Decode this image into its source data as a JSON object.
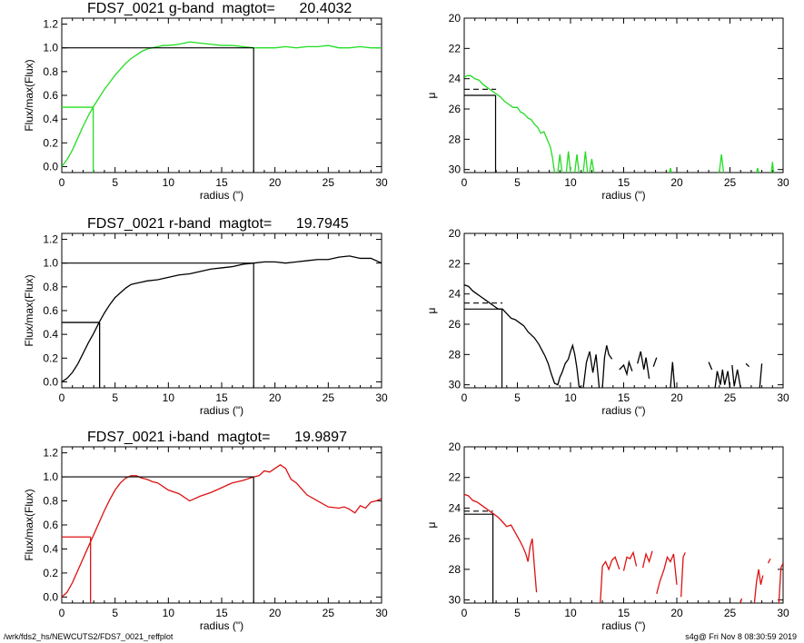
{
  "footer": {
    "left": "/wrk/fds2_hs/NEWCUTS2/FDS7_0021_reffplot",
    "right": "s4g@  Fri Nov  8 08:30:59 2019"
  },
  "colors": {
    "g": "#22dd22",
    "r": "#000000",
    "i": "#dd1111",
    "ref": "#000000"
  },
  "chart_data": [
    {
      "id": "g-growth",
      "type": "line",
      "title": "FDS7_0021 g-band  magtot=      20.4032",
      "xlabel": "radius (\")",
      "ylabel": "Flux/max(Flux)",
      "xlim": [
        0,
        30
      ],
      "ylim": [
        -0.05,
        1.25
      ],
      "xticks": [
        0,
        5,
        10,
        15,
        20,
        25,
        30
      ],
      "yticks": [
        0.0,
        0.2,
        0.4,
        0.6,
        0.8,
        1.0,
        1.2
      ],
      "ytick_labels": [
        "0.0",
        "0.2",
        "0.4",
        "0.6",
        "0.8",
        "1.0",
        "1.2"
      ],
      "color": "g",
      "x": [
        0,
        0.5,
        1,
        1.5,
        2,
        2.5,
        3,
        3.5,
        4,
        4.5,
        5,
        5.5,
        6,
        6.5,
        7,
        7.5,
        8,
        8.5,
        9,
        9.5,
        10,
        11,
        12,
        13,
        14,
        15,
        16,
        17,
        18,
        19,
        20,
        21,
        22,
        23,
        24,
        25,
        26,
        27,
        28,
        29,
        30
      ],
      "y": [
        0,
        0.06,
        0.14,
        0.24,
        0.34,
        0.43,
        0.51,
        0.58,
        0.65,
        0.71,
        0.77,
        0.82,
        0.87,
        0.91,
        0.94,
        0.97,
        0.99,
        1.0,
        1.01,
        1.02,
        1.02,
        1.03,
        1.05,
        1.04,
        1.03,
        1.02,
        1.02,
        1.01,
        1.0,
        1.0,
        1.0,
        1.01,
        1.0,
        1.01,
        1.01,
        1.02,
        1.0,
        1.0,
        1.01,
        1.0,
        1.0
      ],
      "marker_x": 2.95,
      "marker_y": 0.5,
      "ref_x": 18.0,
      "ref_y": 1.0
    },
    {
      "id": "g-profile",
      "type": "line",
      "xlabel": "radius (\")",
      "ylabel": "μ",
      "xlim": [
        0,
        30
      ],
      "ylim": [
        30.2,
        20
      ],
      "xticks": [
        0,
        5,
        10,
        15,
        20,
        25,
        30
      ],
      "yticks": [
        20,
        22,
        24,
        26,
        28,
        30
      ],
      "ytick_labels": [
        "20",
        "22",
        "24",
        "26",
        "28",
        "30"
      ],
      "color": "g",
      "segments": [
        [
          [
            0,
            23.9
          ],
          [
            0.3,
            23.8
          ],
          [
            0.6,
            23.8
          ],
          [
            1,
            24.0
          ],
          [
            1.4,
            24.1
          ],
          [
            1.8,
            24.4
          ],
          [
            2.2,
            24.6
          ],
          [
            2.6,
            24.8
          ],
          [
            3,
            25.0
          ],
          [
            3.4,
            25.2
          ],
          [
            3.8,
            25.5
          ],
          [
            4.2,
            25.7
          ],
          [
            4.6,
            25.9
          ],
          [
            5,
            25.9
          ],
          [
            5.3,
            26.2
          ],
          [
            5.6,
            26.3
          ],
          [
            6,
            26.6
          ],
          [
            6.3,
            26.7
          ],
          [
            6.6,
            27.0
          ],
          [
            6.9,
            27.2
          ],
          [
            7.2,
            27.6
          ],
          [
            7.5,
            27.5
          ],
          [
            7.8,
            28.0
          ],
          [
            8.1,
            28.5
          ],
          [
            8.3,
            29.2
          ],
          [
            8.5,
            30.2
          ]
        ],
        [
          [
            8.8,
            30.2
          ],
          [
            9.0,
            29.0
          ],
          [
            9.2,
            30.2
          ]
        ],
        [
          [
            9.6,
            30.2
          ],
          [
            9.8,
            28.8
          ],
          [
            10.0,
            30.2
          ]
        ],
        [
          [
            10.4,
            30.2
          ],
          [
            10.6,
            29.0
          ],
          [
            10.8,
            30.2
          ]
        ],
        [
          [
            11.2,
            30.2
          ],
          [
            11.4,
            28.8
          ],
          [
            11.6,
            30.2
          ]
        ],
        [
          [
            11.8,
            30.2
          ],
          [
            12.0,
            29.3
          ],
          [
            12.2,
            30.2
          ]
        ],
        [
          [
            19.3,
            30.2
          ],
          [
            19.4,
            29.9
          ],
          [
            19.5,
            30.2
          ]
        ],
        [
          [
            24.0,
            30.2
          ],
          [
            24.2,
            29.0
          ],
          [
            24.4,
            30.2
          ]
        ],
        [
          [
            27.5,
            30.2
          ],
          [
            27.6,
            29.9
          ],
          [
            27.7,
            30.2
          ]
        ],
        [
          [
            28.9,
            30.2
          ],
          [
            29.0,
            29.5
          ],
          [
            29.1,
            30.2
          ]
        ]
      ],
      "dashed_y": 24.7,
      "dashed_x2": 3.0,
      "marker_x": 2.95,
      "marker_y": 25.1
    },
    {
      "id": "r-growth",
      "type": "line",
      "title": "FDS7_0021 r-band  magtot=      19.7945",
      "xlabel": "radius (\")",
      "ylabel": "Flux/max(Flux)",
      "xlim": [
        0,
        30
      ],
      "ylim": [
        -0.05,
        1.25
      ],
      "xticks": [
        0,
        5,
        10,
        15,
        20,
        25,
        30
      ],
      "yticks": [
        0.0,
        0.2,
        0.4,
        0.6,
        0.8,
        1.0,
        1.2
      ],
      "ytick_labels": [
        "0.0",
        "0.2",
        "0.4",
        "0.6",
        "0.8",
        "1.0",
        "1.2"
      ],
      "color": "r",
      "x": [
        0,
        0.5,
        1,
        1.5,
        2,
        2.5,
        3,
        3.5,
        4,
        4.5,
        5,
        5.5,
        6,
        6.5,
        7,
        7.5,
        8,
        9,
        10,
        11,
        12,
        13,
        14,
        15,
        16,
        17,
        18,
        19,
        20,
        21,
        22,
        23,
        24,
        25,
        26,
        27,
        28,
        29,
        30
      ],
      "y": [
        0,
        0.03,
        0.08,
        0.15,
        0.24,
        0.33,
        0.41,
        0.5,
        0.58,
        0.65,
        0.71,
        0.75,
        0.79,
        0.82,
        0.83,
        0.84,
        0.85,
        0.86,
        0.88,
        0.9,
        0.91,
        0.93,
        0.95,
        0.96,
        0.97,
        0.99,
        1.0,
        1.01,
        1.01,
        1.0,
        1.01,
        1.02,
        1.03,
        1.03,
        1.05,
        1.06,
        1.04,
        1.04,
        1.0
      ],
      "marker_x": 3.55,
      "marker_y": 0.5,
      "ref_x": 18.0,
      "ref_y": 1.0
    },
    {
      "id": "r-profile",
      "type": "line",
      "xlabel": "radius (\")",
      "ylabel": "μ",
      "xlim": [
        0,
        30
      ],
      "ylim": [
        30.2,
        20
      ],
      "xticks": [
        0,
        5,
        10,
        15,
        20,
        25,
        30
      ],
      "yticks": [
        20,
        22,
        24,
        26,
        28,
        30
      ],
      "ytick_labels": [
        "20",
        "22",
        "24",
        "26",
        "28",
        "30"
      ],
      "color": "r",
      "segments": [
        [
          [
            0,
            23.4
          ],
          [
            0.4,
            23.5
          ],
          [
            0.8,
            23.8
          ],
          [
            1.2,
            24.0
          ],
          [
            1.6,
            24.2
          ],
          [
            2,
            24.4
          ],
          [
            2.4,
            24.6
          ],
          [
            2.8,
            24.8
          ],
          [
            3.2,
            25.0
          ],
          [
            3.6,
            25.0
          ],
          [
            4,
            25.3
          ],
          [
            4.4,
            25.6
          ],
          [
            4.8,
            25.7
          ],
          [
            5.2,
            25.9
          ],
          [
            5.6,
            26.1
          ],
          [
            6,
            26.5
          ],
          [
            6.3,
            26.7
          ],
          [
            6.6,
            26.9
          ],
          [
            7,
            27.3
          ],
          [
            7.3,
            27.7
          ],
          [
            7.6,
            28.1
          ],
          [
            7.9,
            28.6
          ],
          [
            8.2,
            29.3
          ],
          [
            8.5,
            29.9
          ],
          [
            8.8,
            30.0
          ],
          [
            9.0,
            29.5
          ],
          [
            9.2,
            29.2
          ],
          [
            9.5,
            28.6
          ],
          [
            9.8,
            28.3
          ],
          [
            10.0,
            27.8
          ],
          [
            10.2,
            27.4
          ],
          [
            10.4,
            28.0
          ],
          [
            10.6,
            28.9
          ],
          [
            10.8,
            30.1
          ],
          [
            11.0,
            30.2
          ]
        ],
        [
          [
            11.2,
            30.2
          ],
          [
            11.5,
            28.5
          ],
          [
            11.8,
            27.8
          ],
          [
            12.1,
            29.2
          ],
          [
            12.4,
            28.0
          ],
          [
            12.7,
            30.2
          ]
        ],
        [
          [
            13.0,
            30.2
          ],
          [
            13.2,
            28.2
          ],
          [
            13.4,
            27.4
          ],
          [
            13.6,
            28.0
          ],
          [
            13.9,
            28.3
          ]
        ],
        [
          [
            14.6,
            29.0
          ],
          [
            15.0,
            28.7
          ],
          [
            15.3,
            29.3
          ],
          [
            15.5,
            28.5
          ],
          [
            15.8,
            29.1
          ]
        ],
        [
          [
            16.3,
            28.6
          ],
          [
            16.6,
            27.8
          ],
          [
            16.9,
            29.0
          ],
          [
            17.1,
            28.2
          ],
          [
            17.4,
            29.6
          ]
        ],
        [
          [
            17.8,
            28.8
          ],
          [
            18.1,
            28.2
          ]
        ],
        [
          [
            19.4,
            30.2
          ],
          [
            19.6,
            28.5
          ],
          [
            19.8,
            30.2
          ]
        ],
        [
          [
            23.0,
            28.5
          ],
          [
            23.3,
            29.0
          ]
        ],
        [
          [
            23.6,
            30.2
          ],
          [
            23.8,
            29.1
          ],
          [
            24.1,
            30.0
          ],
          [
            24.3,
            29.0
          ],
          [
            24.5,
            30.0
          ],
          [
            24.8,
            29.1
          ],
          [
            25.0,
            30.2
          ]
        ],
        [
          [
            25.2,
            28.7
          ],
          [
            25.4,
            30.1
          ],
          [
            25.7,
            29.0
          ],
          [
            26.0,
            30.2
          ]
        ],
        [
          [
            26.5,
            28.6
          ],
          [
            26.8,
            28.8
          ]
        ],
        [
          [
            27.8,
            30.2
          ],
          [
            28.0,
            28.6
          ]
        ]
      ],
      "dashed_y": 24.6,
      "dashed_x2": 3.6,
      "marker_x": 3.55,
      "marker_y": 25.0
    },
    {
      "id": "i-growth",
      "type": "line",
      "title": "FDS7_0021 i-band  magtot=      19.9897",
      "xlabel": "radius (\")",
      "ylabel": "Flux/max(Flux)",
      "xlim": [
        0,
        30
      ],
      "ylim": [
        -0.05,
        1.25
      ],
      "xticks": [
        0,
        5,
        10,
        15,
        20,
        25,
        30
      ],
      "yticks": [
        0.0,
        0.2,
        0.4,
        0.6,
        0.8,
        1.0,
        1.2
      ],
      "ytick_labels": [
        "0.0",
        "0.2",
        "0.4",
        "0.6",
        "0.8",
        "1.0",
        "1.2"
      ],
      "color": "i",
      "x": [
        0,
        0.5,
        1,
        1.5,
        2,
        2.5,
        3,
        3.5,
        4,
        4.5,
        5,
        5.5,
        6,
        6.5,
        7,
        7.5,
        8,
        8.5,
        9,
        10,
        11,
        12,
        13,
        14,
        15,
        16,
        17,
        18,
        18.5,
        19,
        19.5,
        20,
        20.5,
        21,
        21.5,
        22,
        22.5,
        23,
        24,
        25,
        26,
        26.5,
        27,
        27.5,
        28,
        28.5,
        29,
        29.5,
        30
      ],
      "y": [
        0,
        0.04,
        0.12,
        0.22,
        0.32,
        0.42,
        0.52,
        0.62,
        0.72,
        0.81,
        0.89,
        0.95,
        0.99,
        1.01,
        1.01,
        0.99,
        0.98,
        0.96,
        0.95,
        0.89,
        0.86,
        0.8,
        0.84,
        0.87,
        0.91,
        0.95,
        0.97,
        1.0,
        1.01,
        1.05,
        1.04,
        1.07,
        1.1,
        1.07,
        0.98,
        0.95,
        0.9,
        0.85,
        0.8,
        0.75,
        0.74,
        0.75,
        0.73,
        0.7,
        0.76,
        0.74,
        0.79,
        0.8,
        0.82
      ],
      "marker_x": 2.7,
      "marker_y": 0.5,
      "ref_x": 18.0,
      "ref_y": 1.0
    },
    {
      "id": "i-profile",
      "type": "line",
      "xlabel": "radius (\")",
      "ylabel": "μ",
      "xlim": [
        0,
        30
      ],
      "ylim": [
        30.2,
        20
      ],
      "xticks": [
        0,
        5,
        10,
        15,
        20,
        25,
        30
      ],
      "yticks": [
        20,
        22,
        24,
        26,
        28,
        30
      ],
      "ytick_labels": [
        "20",
        "22",
        "24",
        "26",
        "28",
        "30"
      ],
      "color": "i",
      "segments": [
        [
          [
            0,
            23.1
          ],
          [
            0.4,
            23.2
          ],
          [
            0.8,
            23.5
          ],
          [
            1.2,
            23.6
          ],
          [
            1.6,
            23.8
          ],
          [
            2,
            24.0
          ],
          [
            2.4,
            24.2
          ],
          [
            2.8,
            24.4
          ],
          [
            3.2,
            24.6
          ],
          [
            3.6,
            24.9
          ],
          [
            4,
            25.2
          ],
          [
            4.4,
            25.1
          ],
          [
            4.8,
            25.6
          ],
          [
            5.2,
            26.1
          ],
          [
            5.5,
            26.5
          ],
          [
            5.8,
            27.0
          ],
          [
            6.0,
            27.5
          ],
          [
            6.2,
            26.5
          ],
          [
            6.4,
            26.0
          ],
          [
            6.6,
            27.8
          ],
          [
            6.8,
            29.5
          ]
        ],
        [
          [
            12.8,
            30.2
          ],
          [
            13.0,
            27.8
          ],
          [
            13.3,
            27.5
          ],
          [
            13.6,
            28.0
          ],
          [
            13.9,
            27.4
          ],
          [
            14.2,
            27.2
          ],
          [
            14.6,
            28.0
          ]
        ],
        [
          [
            15.0,
            28.1
          ],
          [
            15.3,
            27.2
          ],
          [
            15.6,
            27.3
          ],
          [
            15.9,
            26.9
          ],
          [
            16.2,
            27.8
          ]
        ],
        [
          [
            16.8,
            27.9
          ],
          [
            17.1,
            27.0
          ],
          [
            17.4,
            27.5
          ],
          [
            17.7,
            26.8
          ]
        ],
        [
          [
            18.1,
            29.6
          ],
          [
            18.4,
            28.8
          ],
          [
            18.8,
            28.0
          ],
          [
            19.1,
            27.2
          ],
          [
            19.4,
            27.5
          ],
          [
            19.7,
            27.0
          ],
          [
            20.0,
            29.0
          ]
        ],
        [
          [
            20.4,
            29.8
          ],
          [
            20.6,
            27.2
          ],
          [
            20.8,
            26.9
          ]
        ],
        [
          [
            26.0,
            30.2
          ],
          [
            26.1,
            29.9
          ]
        ],
        [
          [
            27.3,
            30.2
          ],
          [
            27.5,
            28.8
          ],
          [
            27.7,
            28.0
          ],
          [
            27.9,
            29.0
          ],
          [
            28.1,
            28.4
          ]
        ],
        [
          [
            28.6,
            27.6
          ],
          [
            28.8,
            27.3
          ]
        ],
        [
          [
            29.6,
            30.2
          ],
          [
            29.8,
            27.9
          ],
          [
            30,
            27.6
          ]
        ]
      ],
      "dashed_y": 24.2,
      "dashed_x2": 2.7,
      "marker_x": 2.7,
      "marker_y": 24.4
    }
  ]
}
